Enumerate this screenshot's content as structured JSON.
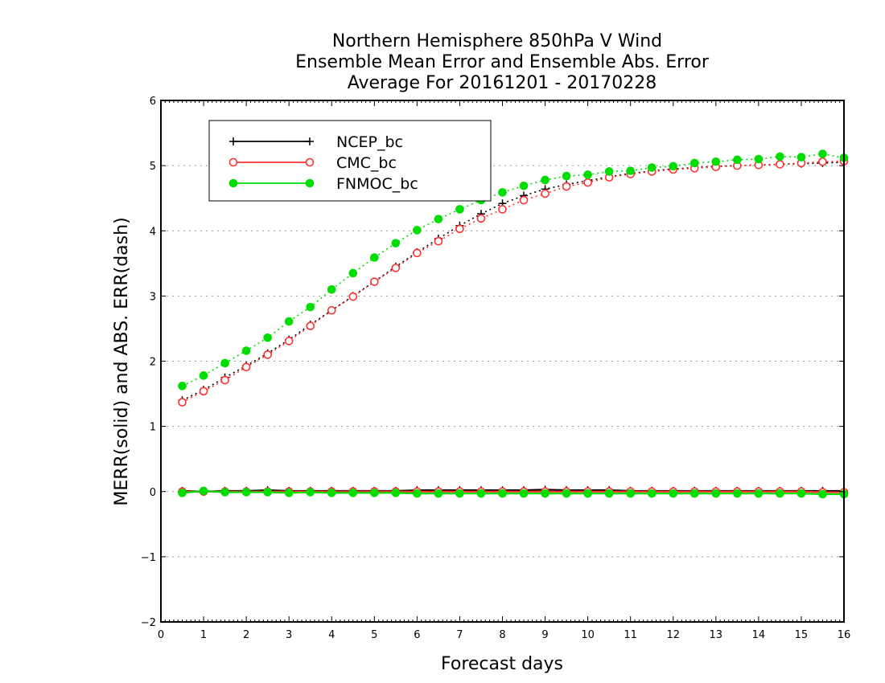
{
  "chart_data": {
    "type": "line",
    "title_lines": [
      "Northern Hemisphere 850hPa V Wind",
      "Ensemble Mean Error and Ensemble Abs. Error",
      "Average For 20161201 - 20170228"
    ],
    "xlabel": "Forecast days",
    "ylabel": "MERR(solid) and ABS. ERR(dash)",
    "xlim": [
      0,
      16
    ],
    "ylim": [
      -2,
      6
    ],
    "x_ticks": [
      "0",
      "1",
      "2",
      "3",
      "4",
      "5",
      "6",
      "7",
      "8",
      "9",
      "10",
      "11",
      "12",
      "13",
      "14",
      "15",
      "16"
    ],
    "y_ticks": [
      "-2",
      "-1",
      "0",
      "1",
      "2",
      "3",
      "4",
      "5",
      "6"
    ],
    "grid": "horizontal dotted",
    "legend_position": "top-left",
    "x": [
      0.5,
      1,
      1.5,
      2,
      2.5,
      3,
      3.5,
      4,
      4.5,
      5,
      5.5,
      6,
      6.5,
      7,
      7.5,
      8,
      8.5,
      9,
      9.5,
      10,
      10.5,
      11,
      11.5,
      12,
      12.5,
      13,
      13.5,
      14,
      14.5,
      15,
      15.5,
      16
    ],
    "series": [
      {
        "name": "NCEP_bc",
        "color": "#000000",
        "marker": "plus",
        "abs_err": [
          1.4,
          1.56,
          1.75,
          1.93,
          2.12,
          2.33,
          2.56,
          2.78,
          3.0,
          3.22,
          3.45,
          3.67,
          3.88,
          4.08,
          4.26,
          4.42,
          4.54,
          4.64,
          4.71,
          4.77,
          4.83,
          4.88,
          4.92,
          4.95,
          4.97,
          4.99,
          5.0,
          5.01,
          5.02,
          5.03,
          5.04,
          5.05
        ],
        "mean_err": [
          0.01,
          0.0,
          0.01,
          0.01,
          0.02,
          0.01,
          0.01,
          0.01,
          0.01,
          0.01,
          0.01,
          0.02,
          0.02,
          0.02,
          0.02,
          0.02,
          0.02,
          0.03,
          0.02,
          0.02,
          0.02,
          0.01,
          0.01,
          0.01,
          0.01,
          0.01,
          0.01,
          0.01,
          0.01,
          0.01,
          0.01,
          0.01
        ]
      },
      {
        "name": "CMC_bc",
        "color": "#ff3030",
        "marker": "open-circle",
        "abs_err": [
          1.37,
          1.54,
          1.71,
          1.91,
          2.1,
          2.31,
          2.54,
          2.78,
          2.99,
          3.22,
          3.43,
          3.66,
          3.84,
          4.03,
          4.19,
          4.33,
          4.47,
          4.57,
          4.68,
          4.74,
          4.82,
          4.87,
          4.91,
          4.94,
          4.96,
          4.98,
          5.0,
          5.01,
          5.02,
          5.04,
          5.06,
          5.07
        ],
        "mean_err": [
          0.0,
          0.0,
          0.0,
          0.0,
          0.0,
          0.0,
          0.0,
          0.0,
          0.0,
          0.0,
          0.0,
          0.0,
          0.0,
          0.0,
          0.0,
          0.0,
          0.0,
          0.0,
          0.0,
          0.0,
          0.0,
          0.0,
          0.0,
          0.0,
          0.0,
          0.0,
          0.0,
          0.0,
          0.0,
          0.0,
          -0.01,
          -0.01
        ]
      },
      {
        "name": "FNMOC_bc",
        "color": "#00dd00",
        "marker": "filled-circle",
        "abs_err": [
          1.62,
          1.78,
          1.97,
          2.16,
          2.36,
          2.61,
          2.83,
          3.1,
          3.35,
          3.59,
          3.81,
          4.01,
          4.18,
          4.33,
          4.47,
          4.59,
          4.69,
          4.78,
          4.84,
          4.86,
          4.91,
          4.92,
          4.97,
          4.99,
          5.04,
          5.06,
          5.09,
          5.1,
          5.14,
          5.13,
          5.18,
          5.12
        ],
        "mean_err": [
          -0.02,
          0.01,
          -0.01,
          -0.01,
          -0.01,
          -0.02,
          -0.01,
          -0.02,
          -0.02,
          -0.02,
          -0.02,
          -0.03,
          -0.03,
          -0.03,
          -0.03,
          -0.03,
          -0.03,
          -0.03,
          -0.03,
          -0.03,
          -0.03,
          -0.03,
          -0.03,
          -0.03,
          -0.03,
          -0.03,
          -0.03,
          -0.03,
          -0.03,
          -0.03,
          -0.04,
          -0.04
        ]
      }
    ]
  }
}
